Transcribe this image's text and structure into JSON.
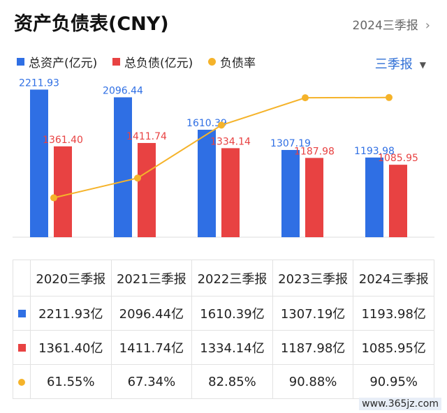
{
  "header": {
    "title": "资产负债表(CNY)",
    "period_link": "2024三季报"
  },
  "legend": [
    {
      "label": "总资产(亿元)",
      "color": "#2f6fe4",
      "shape": "square"
    },
    {
      "label": "总负债(亿元)",
      "color": "#e84242",
      "shape": "square"
    },
    {
      "label": "负债率",
      "color": "#f5b32a",
      "shape": "circle"
    }
  ],
  "period_select": "三季报",
  "chart_data": {
    "type": "bar",
    "categories": [
      "2020三季报",
      "2021三季报",
      "2022三季报",
      "2023三季报",
      "2024三季报"
    ],
    "series": [
      {
        "name": "总资产(亿元)",
        "type": "bar",
        "color": "#2f6fe4",
        "values": [
          2211.93,
          2096.44,
          1610.39,
          1307.19,
          1193.98
        ],
        "labels": [
          "2211.93",
          "2096.44",
          "1610.39",
          "1307.19",
          "1193.98"
        ]
      },
      {
        "name": "总负债(亿元)",
        "type": "bar",
        "color": "#e84242",
        "values": [
          1361.4,
          1411.74,
          1334.14,
          1187.98,
          1085.95
        ],
        "labels": [
          "1361.40",
          "1411.74",
          "1334.14",
          "1187.98",
          "1085.95"
        ]
      },
      {
        "name": "负债率",
        "type": "line",
        "color": "#f5b32a",
        "values": [
          61.55,
          67.34,
          82.85,
          90.88,
          90.95
        ]
      }
    ],
    "ylim": [
      0,
      2300
    ],
    "rate_ylim": [
      50,
      95
    ]
  },
  "table": {
    "headers": [
      "2020三季报",
      "2021三季报",
      "2022三季报",
      "2023三季报",
      "2024三季报"
    ],
    "rows": [
      {
        "marker_color": "#2f6fe4",
        "marker": "square",
        "cells": [
          "2211.93亿",
          "2096.44亿",
          "1610.39亿",
          "1307.19亿",
          "1193.98亿"
        ]
      },
      {
        "marker_color": "#e84242",
        "marker": "square",
        "cells": [
          "1361.40亿",
          "1411.74亿",
          "1334.14亿",
          "1187.98亿",
          "1085.95亿"
        ]
      },
      {
        "marker_color": "#f5b32a",
        "marker": "circle",
        "cells": [
          "61.55%",
          "67.34%",
          "82.85%",
          "90.88%",
          "90.95%"
        ]
      }
    ]
  },
  "watermark": "www.365jz.com"
}
